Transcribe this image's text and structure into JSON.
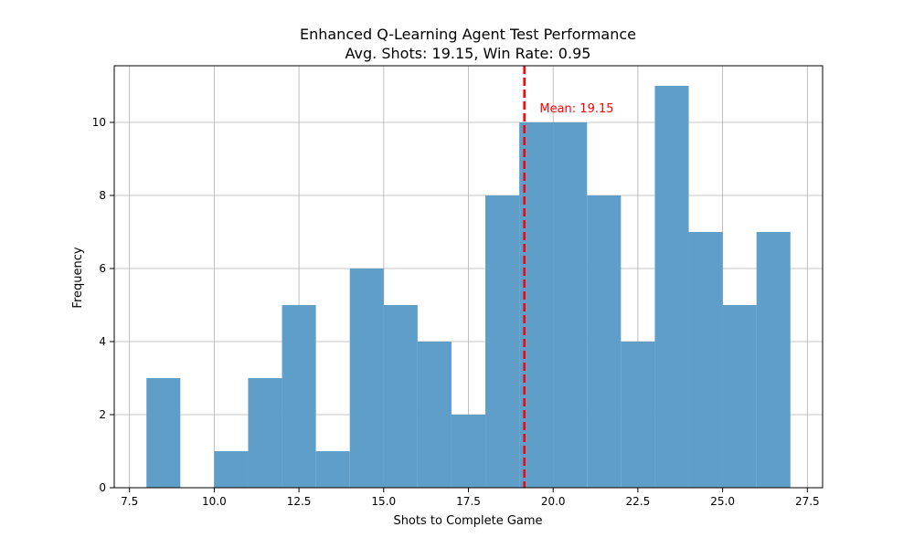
{
  "chart_data": {
    "type": "histogram",
    "title": "Enhanced Q-Learning Agent Test Performance",
    "subtitle": "Avg. Shots: 19.15, Win Rate: 0.95",
    "xlabel": "Shots to Complete Game",
    "ylabel": "Frequency",
    "xlim": [
      7.05,
      27.95
    ],
    "ylim": [
      0,
      11.55
    ],
    "grid": true,
    "bar_color": "#5f9ec9",
    "bins": [
      {
        "start": 8,
        "end": 9,
        "count": 3
      },
      {
        "start": 9,
        "end": 10,
        "count": 0
      },
      {
        "start": 10,
        "end": 11,
        "count": 1
      },
      {
        "start": 11,
        "end": 12,
        "count": 3
      },
      {
        "start": 12,
        "end": 13,
        "count": 5
      },
      {
        "start": 13,
        "end": 14,
        "count": 1
      },
      {
        "start": 14,
        "end": 15,
        "count": 6
      },
      {
        "start": 15,
        "end": 16,
        "count": 5
      },
      {
        "start": 16,
        "end": 17,
        "count": 4
      },
      {
        "start": 17,
        "end": 18,
        "count": 2
      },
      {
        "start": 18,
        "end": 19,
        "count": 8
      },
      {
        "start": 19,
        "end": 20,
        "count": 10
      },
      {
        "start": 20,
        "end": 21,
        "count": 10
      },
      {
        "start": 21,
        "end": 22,
        "count": 8
      },
      {
        "start": 22,
        "end": 23,
        "count": 4
      },
      {
        "start": 23,
        "end": 24,
        "count": 11
      },
      {
        "start": 24,
        "end": 25,
        "count": 7
      },
      {
        "start": 25,
        "end": 26,
        "count": 5
      },
      {
        "start": 26,
        "end": 27,
        "count": 7
      }
    ],
    "x_ticks": [
      7.5,
      10.0,
      12.5,
      15.0,
      17.5,
      20.0,
      22.5,
      25.0,
      27.5
    ],
    "x_tick_labels": [
      "7.5",
      "10.0",
      "12.5",
      "15.0",
      "17.5",
      "20.0",
      "22.5",
      "25.0",
      "27.5"
    ],
    "y_ticks": [
      0,
      2,
      4,
      6,
      8,
      10
    ],
    "y_tick_labels": [
      "0",
      "2",
      "4",
      "6",
      "8",
      "10"
    ],
    "mean_line": {
      "value": 19.15,
      "label": "Mean: 19.15",
      "label_x": 19.6,
      "label_y": 10.4,
      "color": "#ff0000"
    }
  }
}
